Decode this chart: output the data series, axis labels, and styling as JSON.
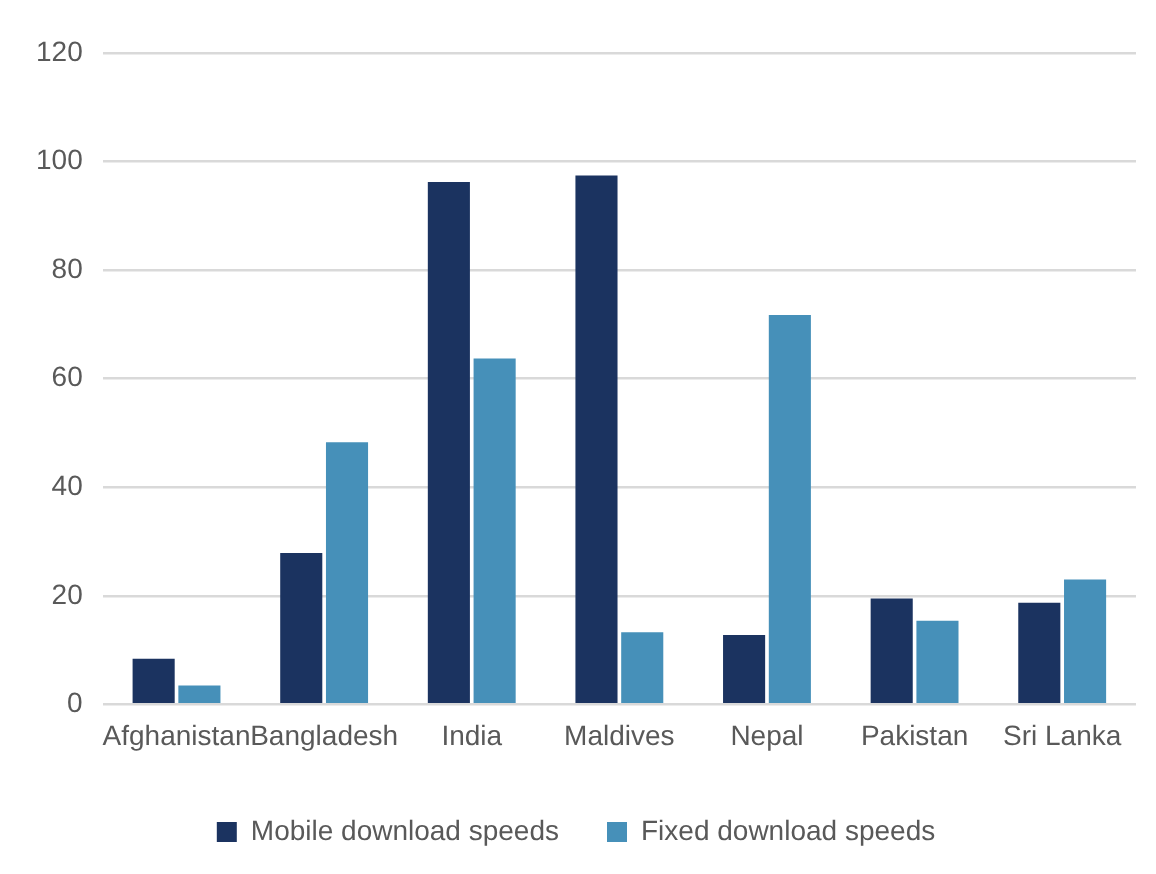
{
  "chart_data": {
    "type": "bar",
    "categories": [
      "Afghanistan",
      "Bangladesh",
      "India",
      "Maldives",
      "Nepal",
      "Pakistan",
      "Sri Lanka"
    ],
    "series": [
      {
        "name": "Mobile download speeds",
        "color": "#1b3360",
        "values": [
          8.4,
          27.9,
          96.2,
          97.4,
          12.8,
          19.5,
          18.7
        ]
      },
      {
        "name": "Fixed download speeds",
        "color": "#4690b9",
        "values": [
          3.5,
          48.3,
          63.7,
          13.3,
          71.7,
          15.4,
          23
        ]
      }
    ],
    "ylim": [
      0,
      120
    ],
    "yticks": [
      0,
      20,
      40,
      60,
      80,
      100,
      120
    ],
    "grid": "y",
    "legend": "bottom"
  }
}
